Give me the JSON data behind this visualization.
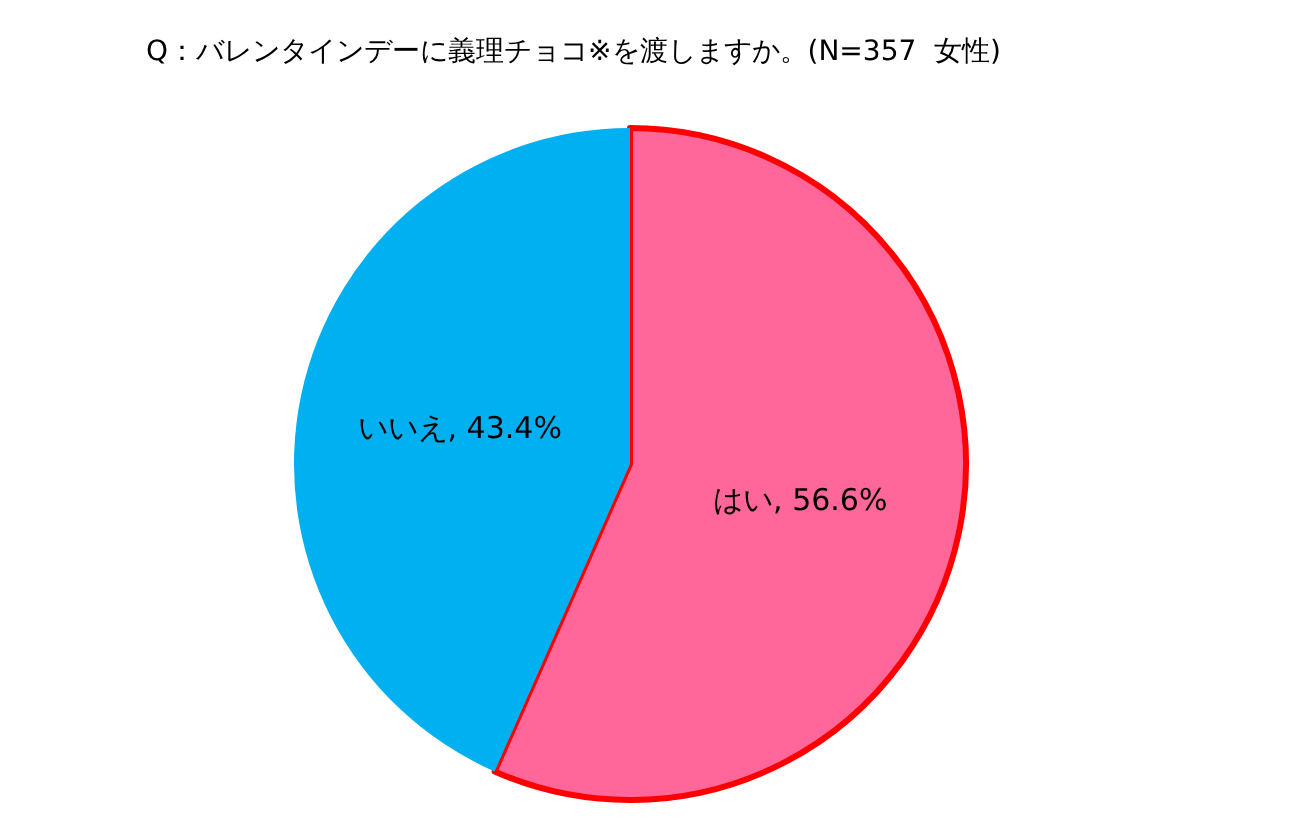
{
  "chart_data": {
    "type": "pie",
    "title": "Q：バレンタインデーに義理チョコ※を渡しますか。(N=357  女性)",
    "categories": [
      "はい",
      "いいえ"
    ],
    "values": [
      56.6,
      43.4
    ],
    "colors": [
      "#ff6699",
      "#00b0f0"
    ],
    "value_labels": [
      ", 56.6%",
      ", 43.4%"
    ],
    "legend": false
  }
}
